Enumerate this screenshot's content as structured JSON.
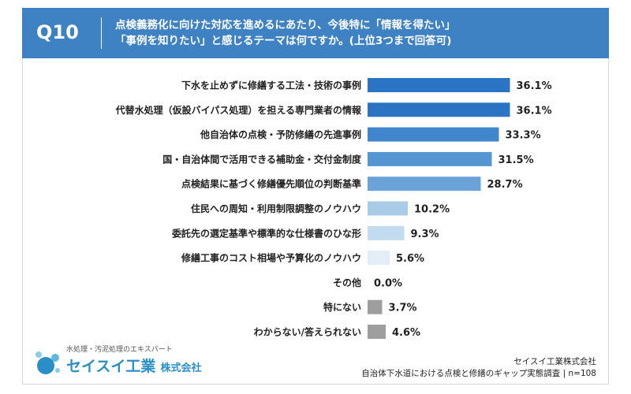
{
  "header": {
    "qnum": "Q10",
    "line1": "点検義務化に向けた対応を進めるにあたり、今後特に「情報を得たい」",
    "line2": "「事例を知りたい」と感じるテーマは何ですか。(上位3つまで回答可)"
  },
  "chart_data": {
    "type": "bar",
    "orientation": "horizontal",
    "categories": [
      "下水を止めずに修繕する工法・技術の事例",
      "代替水処理（仮設バイパス処理）を担える専門業者の情報",
      "他自治体の点検・予防修繕の先進事例",
      "国・自治体間で活用できる補助金・交付金制度",
      "点検結果に基づく修繕優先順位の判断基準",
      "住民への周知・利用制限調整のノウハウ",
      "委託先の選定基準や標準的な仕様書のひな形",
      "修繕工事のコスト相場や予算化のノウハウ",
      "その他",
      "特にない",
      "わからない/答えられない"
    ],
    "values": [
      36.1,
      36.1,
      33.3,
      31.5,
      28.7,
      10.2,
      9.3,
      5.6,
      0.0,
      3.7,
      4.6
    ],
    "value_labels": [
      "36.1%",
      "36.1%",
      "33.3%",
      "31.5%",
      "28.7%",
      "10.2%",
      "9.3%",
      "5.6%",
      "0.0%",
      "3.7%",
      "4.6%"
    ],
    "colors": [
      "#2b74c4",
      "#2b74c4",
      "#3f86cc",
      "#5495d2",
      "#6aa3d8",
      "#a9cbe8",
      "#c2dbef",
      "#e2eef8",
      "#e2eef8",
      "#9e9e9e",
      "#9e9e9e"
    ],
    "xlim": [
      0,
      40
    ],
    "grid": false,
    "legend": "none"
  },
  "footer": {
    "brand_tag": "水処理・汚泥処理のエキスパート",
    "brand_name": "セイスイ工業",
    "brand_suffix": "株式会社",
    "source_line1": "セイスイ工業株式会社",
    "source_line2": "自治体下水道における点検と修繕のギャップ実態調査 | n=108"
  }
}
